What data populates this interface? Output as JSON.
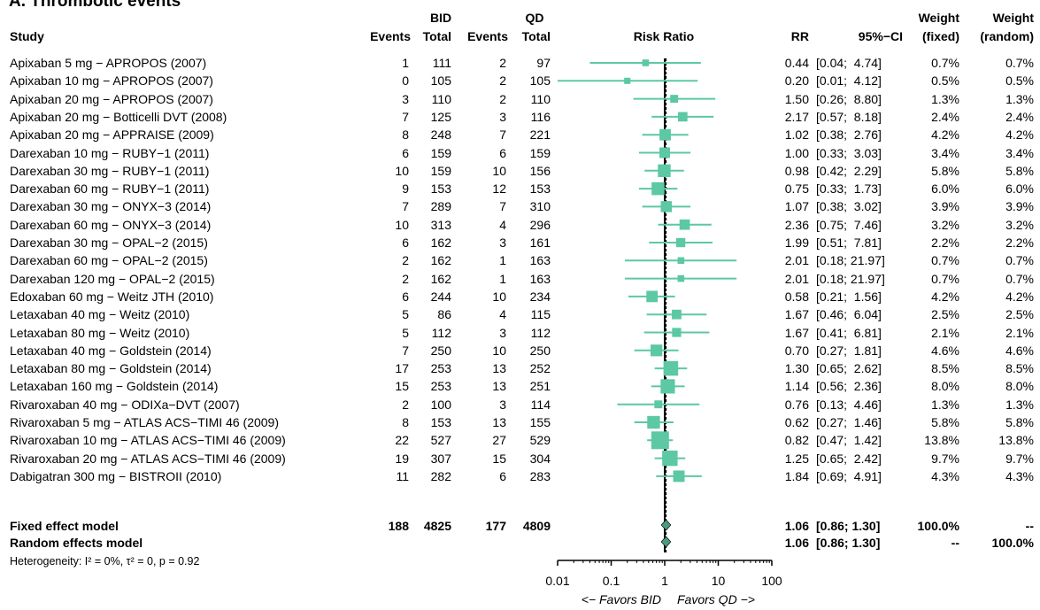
{
  "title": "A. Thrombotic events",
  "headers": {
    "study": "Study",
    "bid": "BID",
    "qd": "QD",
    "events": "Events",
    "total": "Total",
    "risk_ratio": "Risk Ratio",
    "rr": "RR",
    "ci": "95%−CI",
    "weight_fixed_1": "Weight",
    "weight_fixed_2": "(fixed)",
    "weight_random_1": "Weight",
    "weight_random_2": "(random)"
  },
  "summary": {
    "fixed": {
      "label": "Fixed effect model",
      "bid_events": "188",
      "bid_total": "4825",
      "qd_events": "177",
      "qd_total": "4809",
      "rr": "1.06",
      "ci": "[0.86; 1.30]",
      "w_fixed": "100.0%",
      "w_random": "--"
    },
    "random": {
      "label": "Random effects model",
      "rr": "1.06",
      "ci": "[0.86; 1.30]",
      "w_fixed": "--",
      "w_random": "100.0%"
    },
    "heterogeneity": "Heterogeneity: I² = 0%, τ² = 0, p = 0.92"
  },
  "axis": {
    "ticks": [
      "0.01",
      "0.1",
      "1",
      "10",
      "100"
    ],
    "left_label": "<− Favors BID",
    "right_label": "Favors QD −>"
  },
  "colors": {
    "accent": "#5cc8a4",
    "diamond": "#4a9a82"
  },
  "chart_data": {
    "type": "forest",
    "scale": "log",
    "xlim": [
      0.01,
      100
    ],
    "reference_line": 1,
    "fixed_estimate": 1.06,
    "studies": [
      {
        "study": "Apixaban 5 mg − APROPOS (2007)",
        "bid_events": "1",
        "bid_total": "111",
        "qd_events": "2",
        "qd_total": "97",
        "rr": 0.44,
        "lo": 0.04,
        "hi": 4.74,
        "rr_text": "0.44",
        "ci_text": "[0.04;  4.74]",
        "w_fixed": "0.7%",
        "w_random": "0.7%",
        "weight": 0.7
      },
      {
        "study": "Apixaban 10 mg − APROPOS (2007)",
        "bid_events": "0",
        "bid_total": "105",
        "qd_events": "2",
        "qd_total": "105",
        "rr": 0.2,
        "lo": 0.01,
        "hi": 4.12,
        "rr_text": "0.20",
        "ci_text": "[0.01;  4.12]",
        "w_fixed": "0.5%",
        "w_random": "0.5%",
        "weight": 0.5
      },
      {
        "study": "Apixaban 20 mg − APROPOS (2007)",
        "bid_events": "3",
        "bid_total": "110",
        "qd_events": "2",
        "qd_total": "110",
        "rr": 1.5,
        "lo": 0.26,
        "hi": 8.8,
        "rr_text": "1.50",
        "ci_text": "[0.26;  8.80]",
        "w_fixed": "1.3%",
        "w_random": "1.3%",
        "weight": 1.3
      },
      {
        "study": "Apixaban 20 mg − Botticelli DVT (2008)",
        "bid_events": "7",
        "bid_total": "125",
        "qd_events": "3",
        "qd_total": "116",
        "rr": 2.17,
        "lo": 0.57,
        "hi": 8.18,
        "rr_text": "2.17",
        "ci_text": "[0.57;  8.18]",
        "w_fixed": "2.4%",
        "w_random": "2.4%",
        "weight": 2.4
      },
      {
        "study": "Apixaban 20 mg − APPRAISE (2009)",
        "bid_events": "8",
        "bid_total": "248",
        "qd_events": "7",
        "qd_total": "221",
        "rr": 1.02,
        "lo": 0.38,
        "hi": 2.76,
        "rr_text": "1.02",
        "ci_text": "[0.38;  2.76]",
        "w_fixed": "4.2%",
        "w_random": "4.2%",
        "weight": 4.2
      },
      {
        "study": "Darexaban 10 mg − RUBY−1 (2011)",
        "bid_events": "6",
        "bid_total": "159",
        "qd_events": "6",
        "qd_total": "159",
        "rr": 1.0,
        "lo": 0.33,
        "hi": 3.03,
        "rr_text": "1.00",
        "ci_text": "[0.33;  3.03]",
        "w_fixed": "3.4%",
        "w_random": "3.4%",
        "weight": 3.4
      },
      {
        "study": "Darexaban 30 mg − RUBY−1 (2011)",
        "bid_events": "10",
        "bid_total": "159",
        "qd_events": "10",
        "qd_total": "156",
        "rr": 0.98,
        "lo": 0.42,
        "hi": 2.29,
        "rr_text": "0.98",
        "ci_text": "[0.42;  2.29]",
        "w_fixed": "5.8%",
        "w_random": "5.8%",
        "weight": 5.8
      },
      {
        "study": "Darexaban 60 mg − RUBY−1 (2011)",
        "bid_events": "9",
        "bid_total": "153",
        "qd_events": "12",
        "qd_total": "153",
        "rr": 0.75,
        "lo": 0.33,
        "hi": 1.73,
        "rr_text": "0.75",
        "ci_text": "[0.33;  1.73]",
        "w_fixed": "6.0%",
        "w_random": "6.0%",
        "weight": 6.0
      },
      {
        "study": "Darexaban 30 mg − ONYX−3 (2014)",
        "bid_events": "7",
        "bid_total": "289",
        "qd_events": "7",
        "qd_total": "310",
        "rr": 1.07,
        "lo": 0.38,
        "hi": 3.02,
        "rr_text": "1.07",
        "ci_text": "[0.38;  3.02]",
        "w_fixed": "3.9%",
        "w_random": "3.9%",
        "weight": 3.9
      },
      {
        "study": "Darexaban 60 mg − ONYX−3 (2014)",
        "bid_events": "10",
        "bid_total": "313",
        "qd_events": "4",
        "qd_total": "296",
        "rr": 2.36,
        "lo": 0.75,
        "hi": 7.46,
        "rr_text": "2.36",
        "ci_text": "[0.75;  7.46]",
        "w_fixed": "3.2%",
        "w_random": "3.2%",
        "weight": 3.2
      },
      {
        "study": "Darexaban 30 mg − OPAL−2 (2015)",
        "bid_events": "6",
        "bid_total": "162",
        "qd_events": "3",
        "qd_total": "161",
        "rr": 1.99,
        "lo": 0.51,
        "hi": 7.81,
        "rr_text": "1.99",
        "ci_text": "[0.51;  7.81]",
        "w_fixed": "2.2%",
        "w_random": "2.2%",
        "weight": 2.2
      },
      {
        "study": "Darexaban 60 mg − OPAL−2 (2015)",
        "bid_events": "2",
        "bid_total": "162",
        "qd_events": "1",
        "qd_total": "163",
        "rr": 2.01,
        "lo": 0.18,
        "hi": 21.97,
        "rr_text": "2.01",
        "ci_text": "[0.18; 21.97]",
        "w_fixed": "0.7%",
        "w_random": "0.7%",
        "weight": 0.7
      },
      {
        "study": "Darexaban 120 mg − OPAL−2 (2015)",
        "bid_events": "2",
        "bid_total": "162",
        "qd_events": "1",
        "qd_total": "163",
        "rr": 2.01,
        "lo": 0.18,
        "hi": 21.97,
        "rr_text": "2.01",
        "ci_text": "[0.18; 21.97]",
        "w_fixed": "0.7%",
        "w_random": "0.7%",
        "weight": 0.7
      },
      {
        "study": "Edoxaban 60 mg − Weitz JTH (2010)",
        "bid_events": "6",
        "bid_total": "244",
        "qd_events": "10",
        "qd_total": "234",
        "rr": 0.58,
        "lo": 0.21,
        "hi": 1.56,
        "rr_text": "0.58",
        "ci_text": "[0.21;  1.56]",
        "w_fixed": "4.2%",
        "w_random": "4.2%",
        "weight": 4.2
      },
      {
        "study": "Letaxaban 40 mg − Weitz (2010)",
        "bid_events": "5",
        "bid_total": "86",
        "qd_events": "4",
        "qd_total": "115",
        "rr": 1.67,
        "lo": 0.46,
        "hi": 6.04,
        "rr_text": "1.67",
        "ci_text": "[0.46;  6.04]",
        "w_fixed": "2.5%",
        "w_random": "2.5%",
        "weight": 2.5
      },
      {
        "study": "Letaxaban 80 mg − Weitz (2010)",
        "bid_events": "5",
        "bid_total": "112",
        "qd_events": "3",
        "qd_total": "112",
        "rr": 1.67,
        "lo": 0.41,
        "hi": 6.81,
        "rr_text": "1.67",
        "ci_text": "[0.41;  6.81]",
        "w_fixed": "2.1%",
        "w_random": "2.1%",
        "weight": 2.1
      },
      {
        "study": "Letaxaban 40 mg − Goldstein (2014)",
        "bid_events": "7",
        "bid_total": "250",
        "qd_events": "10",
        "qd_total": "250",
        "rr": 0.7,
        "lo": 0.27,
        "hi": 1.81,
        "rr_text": "0.70",
        "ci_text": "[0.27;  1.81]",
        "w_fixed": "4.6%",
        "w_random": "4.6%",
        "weight": 4.6
      },
      {
        "study": "Letaxaban 80 mg − Goldstein (2014)",
        "bid_events": "17",
        "bid_total": "253",
        "qd_events": "13",
        "qd_total": "252",
        "rr": 1.3,
        "lo": 0.65,
        "hi": 2.62,
        "rr_text": "1.30",
        "ci_text": "[0.65;  2.62]",
        "w_fixed": "8.5%",
        "w_random": "8.5%",
        "weight": 8.5
      },
      {
        "study": "Letaxaban 160 mg − Goldstein (2014)",
        "bid_events": "15",
        "bid_total": "253",
        "qd_events": "13",
        "qd_total": "251",
        "rr": 1.14,
        "lo": 0.56,
        "hi": 2.36,
        "rr_text": "1.14",
        "ci_text": "[0.56;  2.36]",
        "w_fixed": "8.0%",
        "w_random": "8.0%",
        "weight": 8.0
      },
      {
        "study": "Rivaroxaban 40 mg − ODIXa−DVT (2007)",
        "bid_events": "2",
        "bid_total": "100",
        "qd_events": "3",
        "qd_total": "114",
        "rr": 0.76,
        "lo": 0.13,
        "hi": 4.46,
        "rr_text": "0.76",
        "ci_text": "[0.13;  4.46]",
        "w_fixed": "1.3%",
        "w_random": "1.3%",
        "weight": 1.3
      },
      {
        "study": "Rivaroxaban 5 mg − ATLAS ACS−TIMI 46 (2009)",
        "bid_events": "8",
        "bid_total": "153",
        "qd_events": "13",
        "qd_total": "155",
        "rr": 0.62,
        "lo": 0.27,
        "hi": 1.46,
        "rr_text": "0.62",
        "ci_text": "[0.27;  1.46]",
        "w_fixed": "5.8%",
        "w_random": "5.8%",
        "weight": 5.8
      },
      {
        "study": "Rivaroxaban 10 mg − ATLAS ACS−TIMI 46 (2009)",
        "bid_events": "22",
        "bid_total": "527",
        "qd_events": "27",
        "qd_total": "529",
        "rr": 0.82,
        "lo": 0.47,
        "hi": 1.42,
        "rr_text": "0.82",
        "ci_text": "[0.47;  1.42]",
        "w_fixed": "13.8%",
        "w_random": "13.8%",
        "weight": 13.8
      },
      {
        "study": "Rivaroxaban 20 mg − ATLAS ACS−TIMI 46 (2009)",
        "bid_events": "19",
        "bid_total": "307",
        "qd_events": "15",
        "qd_total": "304",
        "rr": 1.25,
        "lo": 0.65,
        "hi": 2.42,
        "rr_text": "1.25",
        "ci_text": "[0.65;  2.42]",
        "w_fixed": "9.7%",
        "w_random": "9.7%",
        "weight": 9.7
      },
      {
        "study": "Dabigatran 300 mg − BISTROII (2010)",
        "bid_events": "11",
        "bid_total": "282",
        "qd_events": "6",
        "qd_total": "283",
        "rr": 1.84,
        "lo": 0.69,
        "hi": 4.91,
        "rr_text": "1.84",
        "ci_text": "[0.69;  4.91]",
        "w_fixed": "4.3%",
        "w_random": "4.3%",
        "weight": 4.3
      }
    ],
    "pooled": [
      {
        "model": "Fixed effect model",
        "rr": 1.06,
        "lo": 0.86,
        "hi": 1.3
      },
      {
        "model": "Random effects model",
        "rr": 1.06,
        "lo": 0.86,
        "hi": 1.3
      }
    ]
  }
}
